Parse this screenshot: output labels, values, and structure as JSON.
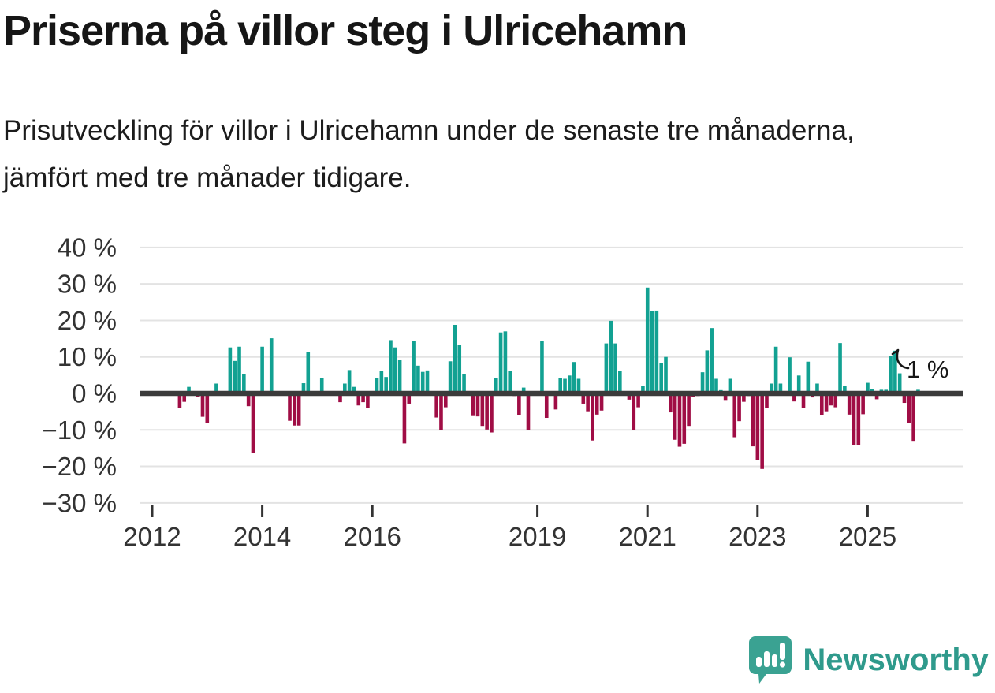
{
  "title": "Priserna på villor steg i Ulricehamn",
  "subtitle": "Prisutveckling för villor i Ulricehamn under de senaste tre månaderna, jämfört med tre månader tidigare.",
  "footer": {
    "brand": "Newsworthy"
  },
  "colors": {
    "positive": "#12a192",
    "negative": "#a00d45",
    "axis": "#3b3b3b",
    "grid": "#e3e3e3",
    "tick_text": "#333333",
    "annotation_text": "#161616",
    "logo": "#3aa292"
  },
  "chart_data": {
    "type": "bar",
    "title": "Priserna på villor steg i Ulricehamn",
    "xlabel": "",
    "ylabel": "%",
    "unit": "%",
    "start_month": "2012-07",
    "frequency": "monthly",
    "grid": true,
    "ylim": [
      -33,
      44
    ],
    "y_ticks": [
      40,
      30,
      20,
      10,
      0,
      -10,
      -20,
      -30
    ],
    "y_tick_labels": [
      "40 %",
      "30 %",
      "20 %",
      "10 %",
      "0 %",
      "−10 %",
      "−20 %",
      "−30 %"
    ],
    "x_tick_labels": [
      "2012",
      "2014",
      "2016",
      "2019",
      "2021",
      "2023",
      "2025"
    ],
    "last_value_label": "1 %",
    "values": [
      -4.1,
      -2.3,
      1.8,
      0.5,
      -0.9,
      -6.4,
      -8.1,
      0,
      2.7,
      0,
      0,
      12.6,
      8.9,
      12.8,
      5.3,
      -3.5,
      -16.3,
      0,
      12.8,
      0,
      15.1,
      0,
      0,
      0,
      -7.5,
      -8.8,
      -8.8,
      2.8,
      11.3,
      0,
      0,
      4.2,
      0,
      0,
      0,
      -2.4,
      2.7,
      6.4,
      1.8,
      -3.3,
      -2.4,
      -3.9,
      0,
      4.2,
      6.2,
      4.5,
      14.6,
      12.6,
      9.1,
      -13.7,
      -2.8,
      14.4,
      7.6,
      5.9,
      6.3,
      0,
      -6.6,
      -10.1,
      -3.8,
      8.8,
      18.8,
      13.2,
      5.4,
      0,
      -6.2,
      -6.3,
      -8.9,
      -9.9,
      -10.7,
      4.2,
      16.7,
      17.0,
      6.2,
      -0.7,
      -6.0,
      1.6,
      -10.0,
      0,
      0,
      14.4,
      -6.7,
      0,
      -4.4,
      4.3,
      4.0,
      4.9,
      8.6,
      4.0,
      -2.8,
      -4.9,
      -12.9,
      -5.8,
      -4.7,
      13.7,
      19.9,
      13.7,
      6.2,
      0,
      -1.7,
      -10.0,
      -3.8,
      2.0,
      29.0,
      22.5,
      22.7,
      8.4,
      10.0,
      -5.2,
      -12.7,
      -14.6,
      -13.8,
      -8.9,
      -0.9,
      -0.7,
      5.8,
      11.8,
      17.9,
      4.0,
      0.9,
      -1.8,
      4.0,
      -12.0,
      -7.6,
      -2.3,
      -0.7,
      -14.5,
      -18.3,
      -20.7,
      -4.0,
      2.7,
      12.8,
      2.7,
      0,
      9.9,
      -2.2,
      4.9,
      -4.0,
      8.7,
      -1.1,
      2.7,
      -5.9,
      -4.9,
      -3.3,
      -3.8,
      13.8,
      2.0,
      -5.8,
      -14.1,
      -14.1,
      -5.7,
      2.9,
      1.2,
      -1.6,
      1.0,
      1.0,
      10.2,
      11.7,
      5.5,
      -2.6,
      -8.0,
      -13.0,
      1.0
    ]
  }
}
